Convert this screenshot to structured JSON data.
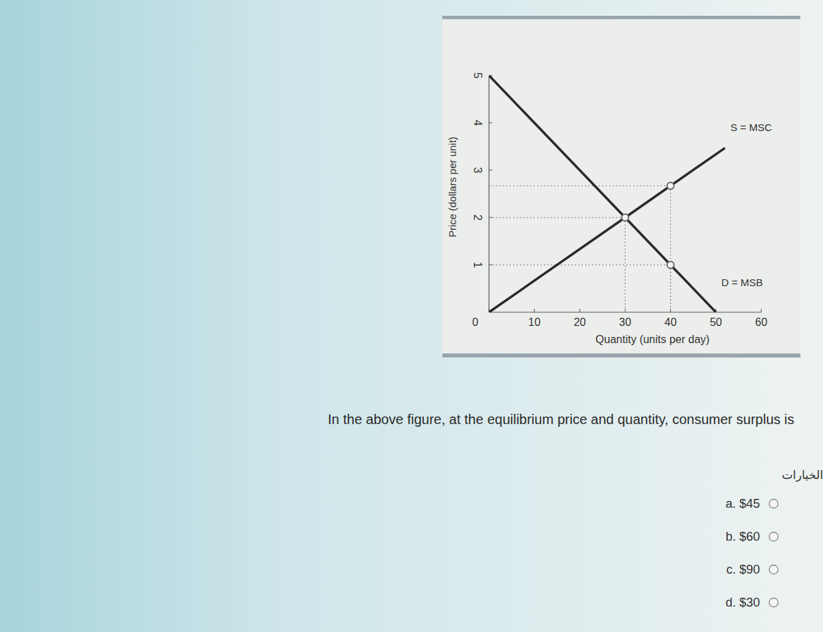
{
  "chart_data": {
    "type": "line",
    "xlabel": "Quantity (units per day)",
    "ylabel": "Price (dollars per unit)",
    "xlim": [
      0,
      60
    ],
    "ylim": [
      0,
      5
    ],
    "xticks": [
      0,
      10,
      20,
      30,
      40,
      50,
      60
    ],
    "yticks": [
      1,
      2,
      3,
      4,
      5
    ],
    "grid": false,
    "series": [
      {
        "name": "S = MSC",
        "color": "#2a2a2a",
        "x": [
          0,
          30,
          40,
          52
        ],
        "values": [
          0,
          2,
          2.67,
          3.47
        ]
      },
      {
        "name": "D = MSB",
        "color": "#2a2a2a",
        "x": [
          0,
          30,
          40,
          50
        ],
        "values": [
          5,
          2,
          1,
          0
        ]
      },
      {
        "type": "scatter",
        "marker": "circle",
        "color": "#6a6a6a",
        "x": [
          30,
          40,
          40
        ],
        "values": [
          2,
          1,
          2.67
        ]
      }
    ]
  },
  "question": {
    "text": "In the above figure, at the equilibrium price and quantity, consumer surplus is",
    "prompt": "اختر أحد الخيارات",
    "options": [
      "a. $45",
      "b. $60",
      "c. $90",
      "d. $30"
    ]
  }
}
